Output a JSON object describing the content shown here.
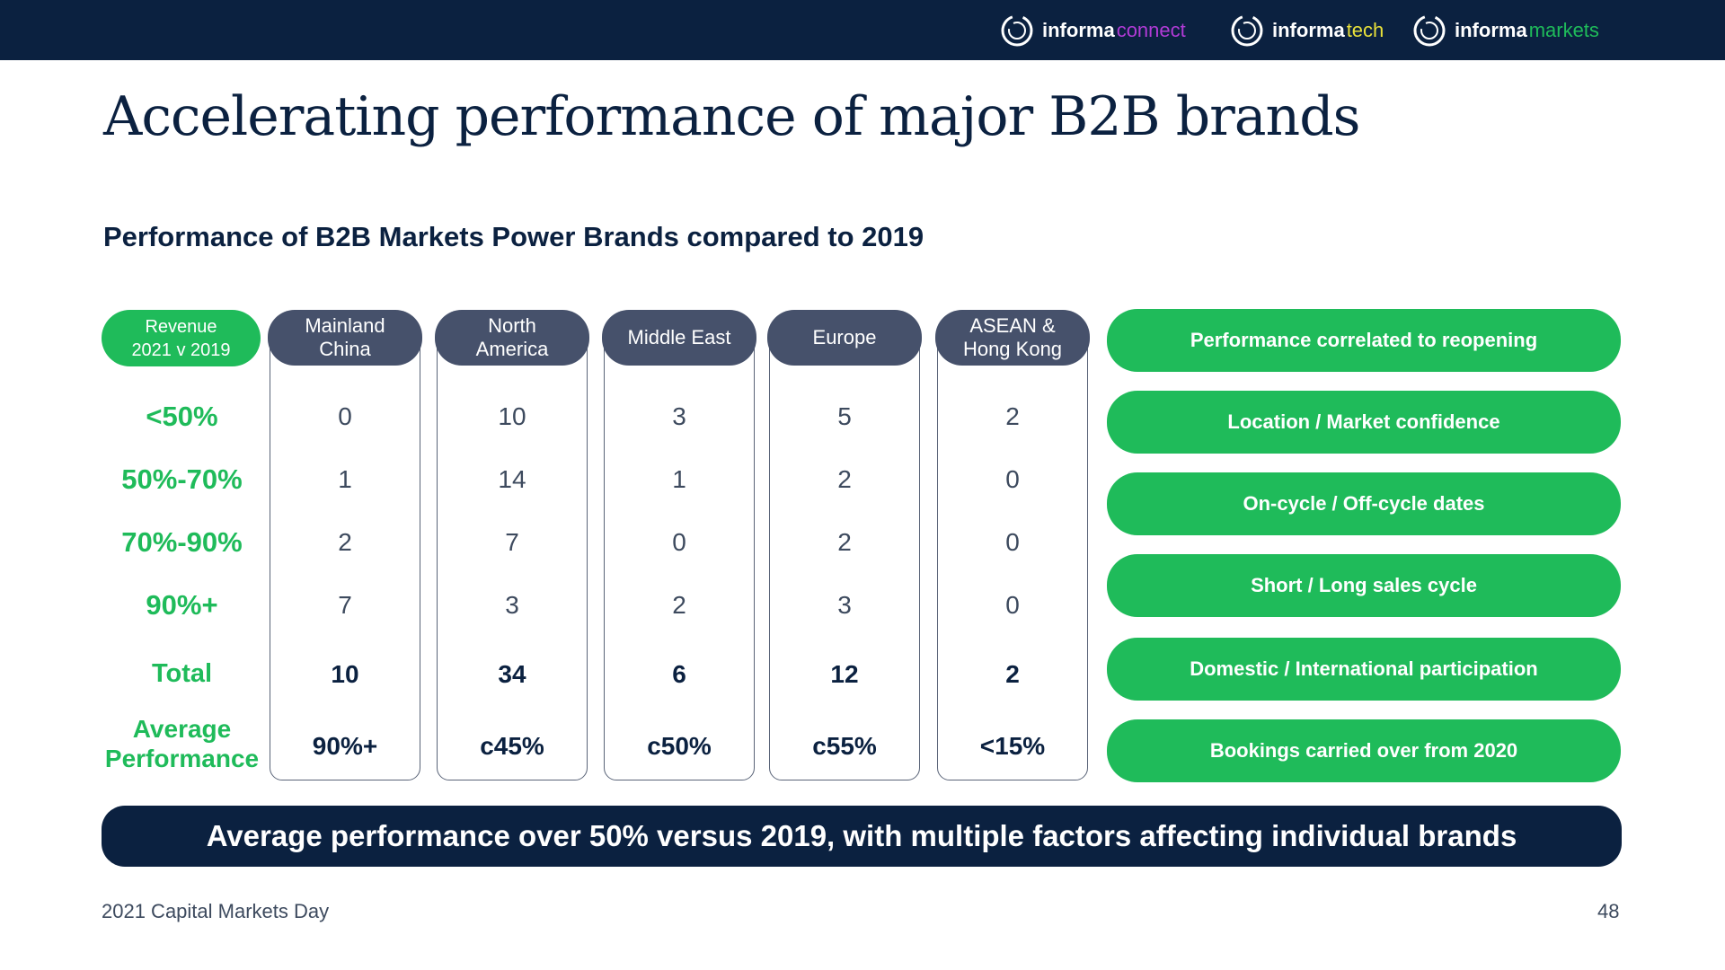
{
  "header": {
    "brands": [
      {
        "bold": "informa",
        "light": "connect",
        "color": "#b13bd6"
      },
      {
        "bold": "informa",
        "light": "tech",
        "color": "#e8e03a"
      },
      {
        "bold": "informa",
        "light": "markets",
        "color": "#1fbb5a"
      }
    ]
  },
  "title": "Accelerating performance of major B2B brands",
  "subtitle": "Performance of B2B Markets Power Brands compared to 2019",
  "table": {
    "revenue_label_line1": "Revenue",
    "revenue_label_line2": "2021 v 2019",
    "row_labels": [
      "<50%",
      "50%-70%",
      "70%-90%",
      "90%+",
      "Total"
    ],
    "avg_label_line1": "Average",
    "avg_label_line2": "Performance",
    "regions": [
      {
        "line1": "Mainland",
        "line2": "China",
        "values": [
          "0",
          "1",
          "2",
          "7"
        ],
        "total": "10",
        "average": "90%+"
      },
      {
        "line1": "North",
        "line2": "America",
        "values": [
          "10",
          "14",
          "7",
          "3"
        ],
        "total": "34",
        "average": "c45%"
      },
      {
        "line1": "Middle East",
        "line2": "",
        "values": [
          "3",
          "1",
          "0",
          "2"
        ],
        "total": "6",
        "average": "c50%"
      },
      {
        "line1": "Europe",
        "line2": "",
        "values": [
          "5",
          "2",
          "2",
          "3"
        ],
        "total": "12",
        "average": "c55%"
      },
      {
        "line1": "ASEAN &",
        "line2": "Hong Kong",
        "values": [
          "2",
          "0",
          "0",
          "0"
        ],
        "total": "2",
        "average": "<15%"
      }
    ]
  },
  "factors": [
    "Performance correlated to reopening",
    "Location / Market confidence",
    "On-cycle / Off-cycle dates",
    "Short / Long sales cycle",
    "Domestic / International participation",
    "Bookings carried over from 2020"
  ],
  "banner": "Average performance over 50% versus 2019, with multiple factors affecting individual brands",
  "footer": {
    "left": "2021 Capital Markets Day",
    "page": "48"
  },
  "colors": {
    "navy": "#0b2140",
    "green": "#1fbb5a",
    "header_grey": "#46516b"
  }
}
